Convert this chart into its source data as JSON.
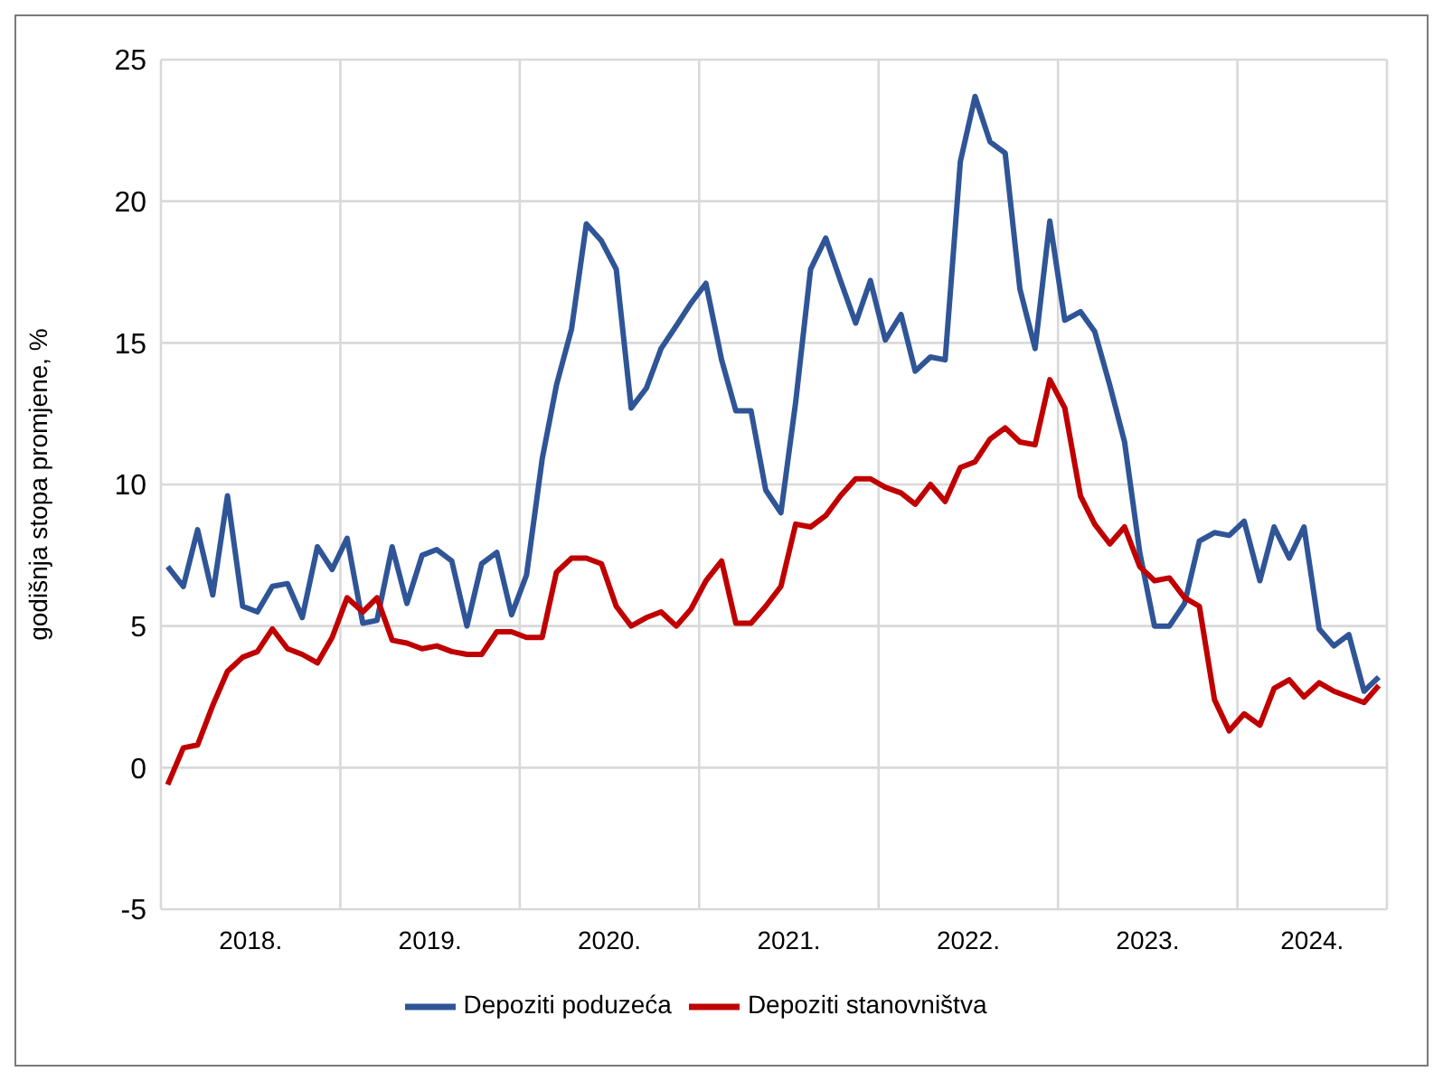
{
  "chart_data": {
    "type": "line",
    "ylabel": "godišnja stopa promjene, %",
    "x": [
      "2018-01-15",
      "2018-02-15",
      "2018-03-15",
      "2018-04-15",
      "2018-05-15",
      "2018-06-15",
      "2018-07-15",
      "2018-08-15",
      "2018-09-15",
      "2018-10-15",
      "2018-11-15",
      "2018-12-15",
      "2019-01-15",
      "2019-02-15",
      "2019-03-15",
      "2019-04-15",
      "2019-05-15",
      "2019-06-15",
      "2019-07-15",
      "2019-08-15",
      "2019-09-15",
      "2019-10-15",
      "2019-11-15",
      "2019-12-15",
      "2020-01-15",
      "2020-02-15",
      "2020-03-15",
      "2020-04-15",
      "2020-05-15",
      "2020-06-15",
      "2020-07-15",
      "2020-08-15",
      "2020-09-15",
      "2020-10-15",
      "2020-11-15",
      "2020-12-15",
      "2021-01-15",
      "2021-02-15",
      "2021-03-15",
      "2021-04-15",
      "2021-05-15",
      "2021-06-15",
      "2021-07-15",
      "2021-08-15",
      "2021-09-15",
      "2021-10-15",
      "2021-11-15",
      "2021-12-15",
      "2022-01-15",
      "2022-02-15",
      "2022-03-15",
      "2022-04-15",
      "2022-05-15",
      "2022-06-15",
      "2022-07-15",
      "2022-08-15",
      "2022-09-15",
      "2022-10-15",
      "2022-11-15",
      "2022-12-15",
      "2023-01-15",
      "2023-02-15",
      "2023-03-15",
      "2023-04-15",
      "2023-05-15",
      "2023-06-15",
      "2023-07-15",
      "2023-08-15",
      "2023-09-15",
      "2023-10-15",
      "2023-11-15",
      "2023-12-15",
      "2024-01-15",
      "2024-02-15",
      "2024-03-15",
      "2024-04-15",
      "2024-05-15",
      "2024-06-15",
      "2024-07-15",
      "2024-08-15",
      "2024-09-15",
      "2024-10-15"
    ],
    "series": [
      {
        "name": "Depoziti poduzeća",
        "color": "#2f5597",
        "values": [
          7.1,
          6.4,
          8.4,
          6.1,
          9.6,
          5.7,
          5.5,
          6.4,
          6.5,
          5.3,
          7.8,
          7.0,
          8.1,
          5.1,
          5.2,
          7.8,
          5.8,
          7.5,
          7.7,
          7.3,
          5.0,
          7.2,
          7.6,
          5.4,
          6.8,
          10.9,
          13.5,
          15.5,
          19.2,
          18.6,
          17.6,
          12.7,
          13.4,
          14.8,
          15.6,
          16.4,
          17.1,
          14.4,
          12.6,
          12.6,
          9.8,
          9.0,
          12.9,
          17.6,
          18.7,
          17.2,
          15.7,
          17.2,
          15.1,
          16.0,
          14.0,
          14.5,
          14.4,
          21.4,
          23.7,
          22.1,
          21.7,
          16.9,
          14.8,
          19.3,
          15.8,
          16.1,
          15.4,
          13.5,
          11.5,
          7.6,
          5.0,
          5.0,
          5.8,
          8.0,
          8.3,
          8.2,
          8.7,
          6.6,
          8.5,
          7.4,
          8.5,
          4.9,
          4.3,
          4.7,
          2.7,
          3.2
        ]
      },
      {
        "name": "Depoziti stanovništva",
        "color": "#c00000",
        "values": [
          -0.6,
          0.7,
          0.8,
          2.2,
          3.4,
          3.9,
          4.1,
          4.9,
          4.2,
          4.0,
          3.7,
          4.6,
          6.0,
          5.5,
          6.0,
          4.5,
          4.4,
          4.2,
          4.3,
          4.1,
          4.0,
          4.0,
          4.8,
          4.8,
          4.6,
          4.6,
          6.9,
          7.4,
          7.4,
          7.2,
          5.7,
          5.0,
          5.3,
          5.5,
          5.0,
          5.6,
          6.6,
          7.3,
          5.1,
          5.1,
          5.7,
          6.4,
          8.6,
          8.5,
          8.9,
          9.6,
          10.2,
          10.2,
          9.9,
          9.7,
          9.3,
          10.0,
          9.4,
          10.6,
          10.8,
          11.6,
          12.0,
          11.5,
          11.4,
          13.7,
          12.7,
          9.6,
          8.6,
          7.9,
          8.5,
          7.1,
          6.6,
          6.7,
          6.0,
          5.7,
          2.4,
          1.3,
          1.9,
          1.5,
          2.8,
          3.1,
          2.5,
          3.0,
          2.7,
          2.5,
          2.3,
          2.9
        ]
      }
    ],
    "xlim": [
      "2018-01",
      "2024-11"
    ],
    "xticks": [
      {
        "value": "2018-01",
        "label": null
      },
      {
        "value": "2018-07",
        "label": "2018."
      },
      {
        "value": "2019-01",
        "label": null
      },
      {
        "value": "2019-07",
        "label": "2019."
      },
      {
        "value": "2020-01",
        "label": null
      },
      {
        "value": "2020-07",
        "label": "2020."
      },
      {
        "value": "2021-01",
        "label": null
      },
      {
        "value": "2021-07",
        "label": "2021."
      },
      {
        "value": "2022-01",
        "label": null
      },
      {
        "value": "2022-07",
        "label": "2022."
      },
      {
        "value": "2023-01",
        "label": null
      },
      {
        "value": "2023-07",
        "label": "2023."
      },
      {
        "value": "2024-01",
        "label": null
      },
      {
        "value": "2024-06",
        "label": "2024."
      },
      {
        "value": "2024-11",
        "label": null
      }
    ],
    "ylim": [
      -5,
      25
    ],
    "yticks": [
      -5,
      0,
      5,
      10,
      15,
      20,
      25
    ],
    "grid": true,
    "legend": "bottom",
    "line_style": "solid",
    "marker": "none"
  }
}
